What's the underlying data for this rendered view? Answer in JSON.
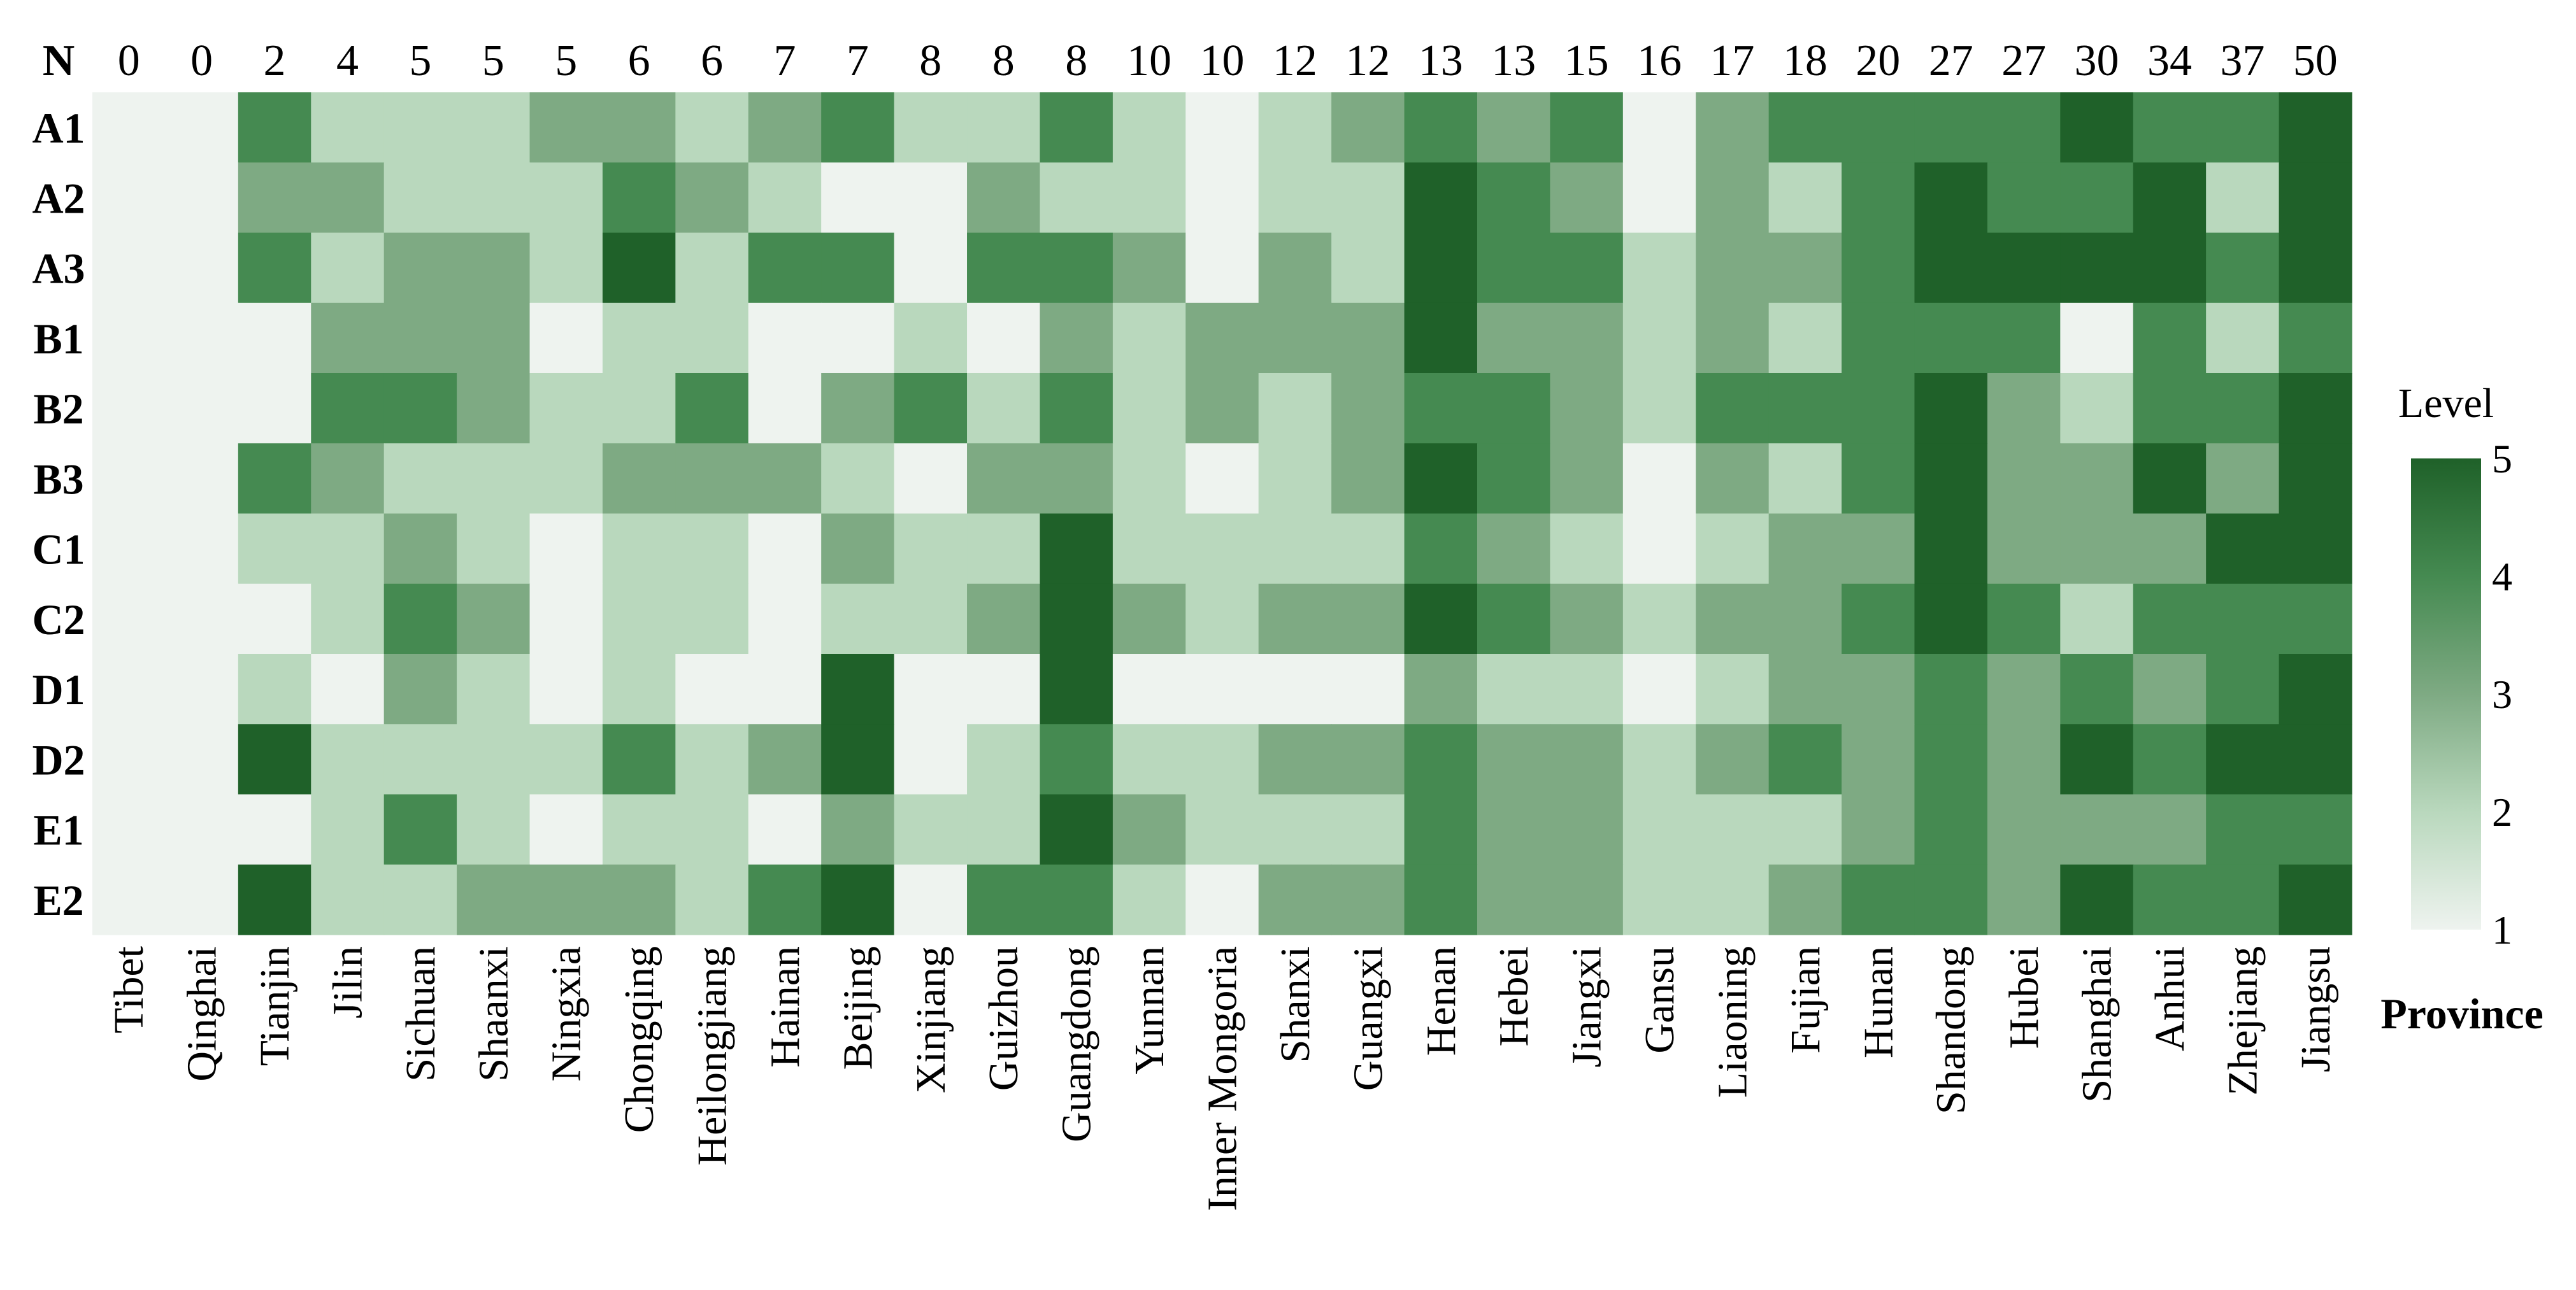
{
  "chart_data": {
    "type": "heatmap",
    "n_label": "N",
    "counts": [
      0,
      0,
      2,
      4,
      5,
      5,
      5,
      6,
      6,
      7,
      7,
      8,
      8,
      8,
      10,
      10,
      12,
      12,
      13,
      13,
      15,
      16,
      17,
      18,
      20,
      27,
      27,
      30,
      34,
      37,
      50
    ],
    "columns": [
      "Tibet",
      "Qinghai",
      "Tianjin",
      "Jilin",
      "Sichuan",
      "Shaanxi",
      "Ningxia",
      "Chongqing",
      "Heilongjiang",
      "Hainan",
      "Beijing",
      "Xinjiang",
      "Guizhou",
      "Guangdong",
      "Yunnan",
      "Inner Mongoria",
      "Shanxi",
      "Guangxi",
      "Henan",
      "Hebei",
      "Jiangxi",
      "Gansu",
      "Liaoning",
      "Fujian",
      "Hunan",
      "Shandong",
      "Hubei",
      "Shanghai",
      "Anhui",
      "Zhejiang",
      "Jiangsu"
    ],
    "rows": [
      "A1",
      "A2",
      "A3",
      "B1",
      "B2",
      "B3",
      "C1",
      "C2",
      "D1",
      "D2",
      "E1",
      "E2"
    ],
    "values": [
      [
        1,
        1,
        4,
        2,
        2,
        2,
        3,
        3,
        2,
        3,
        4,
        2,
        2,
        4,
        2,
        1,
        2,
        3,
        4,
        3,
        4,
        1,
        3,
        4,
        4,
        4,
        4,
        5,
        4,
        4,
        5
      ],
      [
        1,
        1,
        3,
        3,
        2,
        2,
        2,
        4,
        3,
        2,
        1,
        1,
        3,
        2,
        2,
        1,
        2,
        2,
        5,
        4,
        3,
        1,
        3,
        2,
        4,
        5,
        4,
        4,
        5,
        2,
        5
      ],
      [
        1,
        1,
        4,
        2,
        3,
        3,
        2,
        5,
        2,
        4,
        4,
        1,
        4,
        4,
        3,
        1,
        3,
        2,
        5,
        4,
        4,
        2,
        3,
        3,
        4,
        5,
        5,
        5,
        5,
        4,
        5
      ],
      [
        1,
        1,
        1,
        3,
        3,
        3,
        1,
        2,
        2,
        1,
        1,
        2,
        1,
        3,
        2,
        3,
        3,
        3,
        5,
        3,
        3,
        2,
        3,
        2,
        4,
        4,
        4,
        1,
        4,
        2,
        4
      ],
      [
        1,
        1,
        1,
        4,
        4,
        3,
        2,
        2,
        4,
        1,
        3,
        4,
        2,
        4,
        2,
        3,
        2,
        3,
        4,
        4,
        3,
        2,
        4,
        4,
        4,
        5,
        3,
        2,
        4,
        4,
        5
      ],
      [
        1,
        1,
        4,
        3,
        2,
        2,
        2,
        3,
        3,
        3,
        2,
        1,
        3,
        3,
        2,
        1,
        2,
        3,
        5,
        4,
        3,
        1,
        3,
        2,
        4,
        5,
        3,
        3,
        5,
        3,
        5
      ],
      [
        1,
        1,
        2,
        2,
        3,
        2,
        1,
        2,
        2,
        1,
        3,
        2,
        2,
        5,
        2,
        2,
        2,
        2,
        4,
        3,
        2,
        1,
        2,
        3,
        3,
        5,
        3,
        3,
        3,
        5,
        5
      ],
      [
        1,
        1,
        1,
        2,
        4,
        3,
        1,
        2,
        2,
        1,
        2,
        2,
        3,
        5,
        3,
        2,
        3,
        3,
        5,
        4,
        3,
        2,
        3,
        3,
        4,
        5,
        4,
        2,
        4,
        4,
        4
      ],
      [
        1,
        1,
        2,
        1,
        3,
        2,
        1,
        2,
        1,
        1,
        5,
        1,
        1,
        5,
        1,
        1,
        1,
        1,
        3,
        2,
        2,
        1,
        2,
        3,
        3,
        4,
        3,
        4,
        3,
        4,
        5
      ],
      [
        1,
        1,
        5,
        2,
        2,
        2,
        2,
        4,
        2,
        3,
        5,
        1,
        2,
        4,
        2,
        2,
        3,
        3,
        4,
        3,
        3,
        2,
        3,
        4,
        3,
        4,
        3,
        5,
        4,
        5,
        5
      ],
      [
        1,
        1,
        1,
        2,
        4,
        2,
        1,
        2,
        2,
        1,
        3,
        2,
        2,
        5,
        3,
        2,
        2,
        2,
        4,
        3,
        3,
        2,
        2,
        2,
        3,
        4,
        3,
        3,
        3,
        4,
        4
      ],
      [
        1,
        1,
        5,
        2,
        2,
        3,
        3,
        3,
        2,
        4,
        5,
        1,
        4,
        4,
        2,
        1,
        3,
        3,
        4,
        3,
        3,
        2,
        2,
        3,
        4,
        4,
        3,
        5,
        4,
        4,
        5
      ]
    ],
    "colorbar": {
      "title": "Level",
      "ticks": [
        "1",
        "2",
        "3",
        "4",
        "5"
      ],
      "range": [
        1,
        5
      ],
      "colors": [
        "#eef3ef",
        "#b9d8bd",
        "#7eaa83",
        "#458a51",
        "#1f6129"
      ]
    },
    "xlabel": "Province",
    "legend_position": "right"
  }
}
